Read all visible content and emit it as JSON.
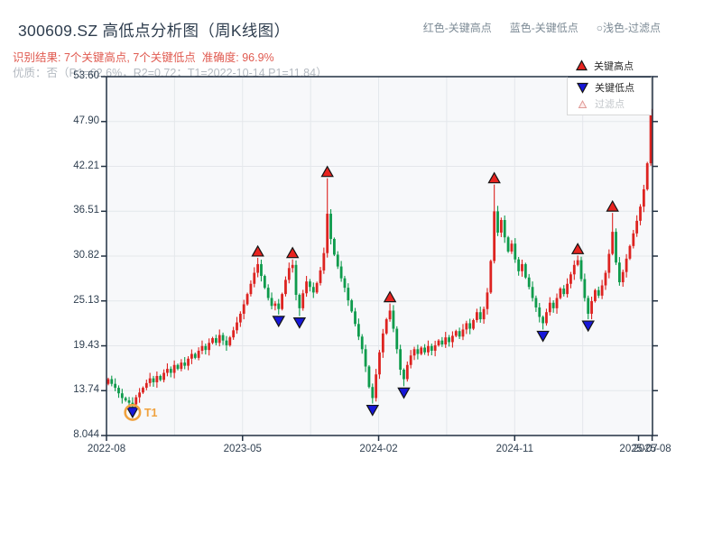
{
  "header": {
    "title": "300609.SZ 高低点分析图（周K线图）",
    "result_line": "识别结果: 7个关键高点, 7个关键低点  准确度: 96.9%",
    "quality_line": "优质：否（R1=62.6%，R2=0.72；T1=2022-10-14 P1=11.84）",
    "top_legend": {
      "high": "红色-关键高点",
      "low": "蓝色-关键低点",
      "filter": "○浅色-过滤点"
    }
  },
  "legend": {
    "high": "关键高点",
    "low": "关键低点",
    "filter": "过滤点"
  },
  "colors": {
    "up": "#dd2320",
    "down": "#0e9b4c",
    "marker_high": "#e82420",
    "marker_low": "#1717d9",
    "marker_edge": "#151515",
    "accent_orange": "#f0a23e",
    "grid": "#e4e7eb",
    "plot_bg": "#f7f8fa",
    "axis": "#223142",
    "filter_fill": "#fdeceb",
    "filter_edge": "#e09a96"
  },
  "chart_data": {
    "type": "candlestick",
    "interval": "weekly",
    "symbol": "300609.SZ",
    "y_ticks": [
      "53.60",
      "47.90",
      "42.21",
      "36.51",
      "30.82",
      "25.13",
      "19.43",
      "13.74",
      "8.044"
    ],
    "y_range": [
      8.044,
      53.6
    ],
    "x_ticks": [
      {
        "w": 0,
        "label": "2022-08"
      },
      {
        "w": 39,
        "label": "2023-05"
      },
      {
        "w": 78,
        "label": "2024-02"
      },
      {
        "w": 117,
        "label": "2024-11"
      },
      {
        "w": 152.5,
        "label": "2025-07"
      },
      {
        "w": 156.4,
        "label": "2025-08"
      }
    ],
    "grid_weeks": [
      0,
      19.5,
      39,
      58.5,
      78,
      97.5,
      117,
      136.5,
      156.4
    ],
    "first_open": 14.6,
    "closes": [
      15.2,
      14.6,
      14.1,
      13.4,
      12.8,
      12.5,
      12.2,
      12.0,
      12.9,
      13.5,
      14.1,
      14.7,
      15.3,
      14.8,
      15.6,
      15.1,
      16.0,
      16.5,
      16.0,
      17.0,
      16.5,
      17.3,
      16.9,
      17.8,
      18.4,
      17.9,
      18.8,
      19.4,
      18.9,
      19.8,
      20.4,
      19.8,
      20.8,
      20.1,
      19.5,
      20.5,
      21.4,
      22.4,
      23.5,
      24.7,
      26.0,
      27.3,
      28.7,
      29.8,
      28.3,
      26.8,
      25.5,
      24.5,
      24.8,
      24.1,
      26.0,
      27.8,
      29.3,
      29.7,
      25.9,
      24.2,
      26.1,
      27.6,
      26.9,
      26.2,
      27.4,
      29.0,
      31.2,
      36.2,
      33.0,
      31.0,
      29.5,
      28.0,
      26.8,
      25.2,
      23.8,
      22.2,
      20.6,
      19.0,
      16.8,
      14.2,
      12.8,
      15.8,
      18.6,
      21.0,
      22.8,
      23.9,
      21.6,
      19.0,
      16.4,
      15.2,
      17.0,
      18.2,
      19.0,
      18.4,
      19.2,
      18.6,
      19.4,
      18.8,
      19.5,
      20.1,
      19.6,
      20.5,
      19.9,
      20.7,
      21.3,
      20.6,
      21.5,
      22.3,
      21.6,
      22.7,
      23.7,
      22.8,
      24.1,
      26.2,
      30.2,
      36.5,
      33.8,
      35.4,
      33.2,
      31.4,
      32.4,
      30.4,
      28.9,
      29.8,
      28.1,
      26.9,
      25.5,
      24.3,
      23.1,
      22.3,
      23.7,
      24.9,
      24.2,
      25.5,
      26.7,
      26.0,
      27.3,
      28.5,
      29.7,
      30.3,
      27.9,
      25.5,
      23.5,
      25.1,
      26.5,
      25.8,
      27.1,
      28.7,
      31.1,
      33.9,
      30.0,
      27.5,
      28.8,
      30.5,
      32.1,
      33.7,
      35.3,
      37.1,
      39.3,
      42.6,
      49.5
    ],
    "markers": [
      {
        "week": 7,
        "type": "low",
        "price": 11.84,
        "highlight": true,
        "label": "T1"
      },
      {
        "week": 43,
        "type": "high",
        "price": 30.6
      },
      {
        "week": 49,
        "type": "low",
        "price": 23.4
      },
      {
        "week": 53,
        "type": "high",
        "price": 30.4
      },
      {
        "week": 55,
        "type": "low",
        "price": 23.2
      },
      {
        "week": 63,
        "type": "high",
        "price": 40.7
      },
      {
        "week": 76,
        "type": "low",
        "price": 12.1
      },
      {
        "week": 81,
        "type": "high",
        "price": 24.8
      },
      {
        "week": 85,
        "type": "low",
        "price": 14.3
      },
      {
        "week": 111,
        "type": "high",
        "price": 39.9
      },
      {
        "week": 125,
        "type": "low",
        "price": 21.5
      },
      {
        "week": 135,
        "type": "high",
        "price": 30.9
      },
      {
        "week": 138,
        "type": "low",
        "price": 22.8
      },
      {
        "week": 145,
        "type": "high",
        "price": 36.3
      }
    ]
  }
}
